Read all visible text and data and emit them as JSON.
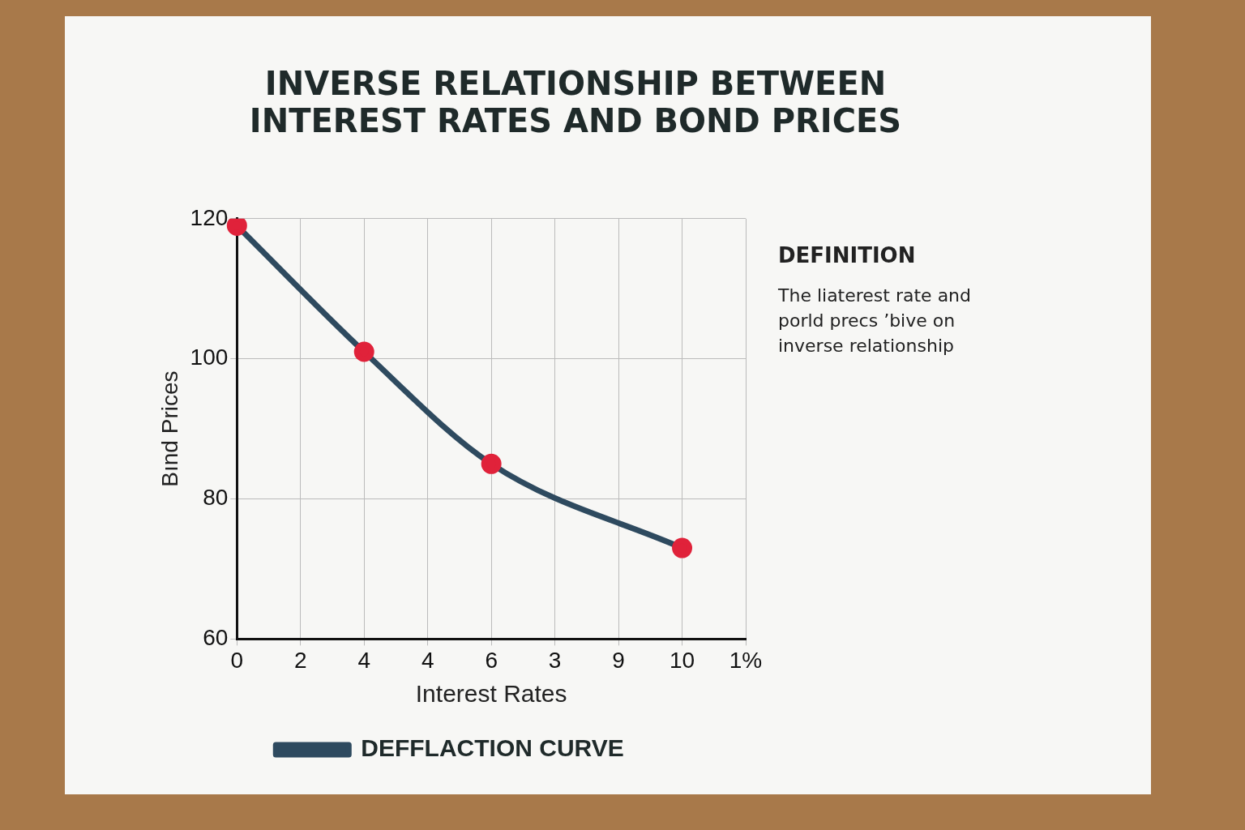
{
  "chart_data": {
    "type": "line",
    "title": "INVERSE RELATIONSHIP BETWEEN INTEREST RATES AND BOND PRICES",
    "xlabel": "Interest Rates",
    "ylabel": "Bınd Prices",
    "categories": [
      "0",
      "2",
      "4",
      "4",
      "6",
      "3",
      "9",
      "10",
      "1%"
    ],
    "series": [
      {
        "name": "DEFFLACTION CURVE",
        "color": "#2e4a5f",
        "colors": [
          "#e0223a",
          null,
          "#e0223a",
          null,
          "#e0223a",
          null,
          null,
          "#e0223a",
          null
        ],
        "values": [
          119,
          null,
          101,
          null,
          85,
          null,
          null,
          73,
          null
        ]
      }
    ],
    "ylim": [
      60,
      120
    ],
    "yticks": [
      60,
      80,
      100,
      120
    ],
    "grid": true,
    "legend": "bottom",
    "marker": "circle",
    "line_style": "solid",
    "annotations": [
      "DEFINITION",
      "The liaterest rate and porld precs ʼbive on inverse relationship"
    ]
  }
}
